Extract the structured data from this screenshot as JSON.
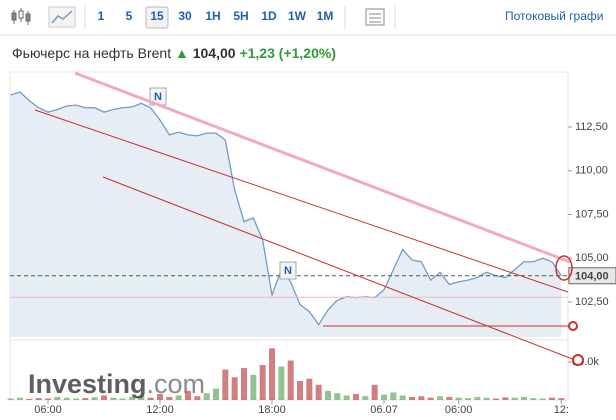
{
  "toolbar": {
    "intervals": [
      "1",
      "5",
      "15",
      "30",
      "1H",
      "5H",
      "1D",
      "1W",
      "1M"
    ],
    "selected_interval": 2,
    "streaming_link": "Потоковый графи"
  },
  "header": {
    "instrument": "Фьючерс на нефть Brent",
    "price": "104,00",
    "change": "+1,23",
    "change_pct": "(+1,20%)"
  },
  "watermark": [
    "Investing",
    ".com"
  ],
  "news_markers": [
    "N",
    "N"
  ],
  "chart_data": {
    "type": "line",
    "categories": [
      null,
      null,
      null,
      null,
      "06:00",
      null,
      null,
      null,
      null,
      null,
      null,
      null,
      null,
      null,
      null,
      null,
      "12:00",
      null,
      null,
      null,
      null,
      null,
      null,
      null,
      null,
      null,
      null,
      null,
      "18:00",
      null,
      null,
      null,
      null,
      null,
      null,
      null,
      null,
      null,
      null,
      null,
      "06.07",
      null,
      null,
      null,
      null,
      null,
      null,
      null,
      "06:00",
      null,
      null,
      null,
      null,
      null,
      null,
      null,
      null,
      null,
      null,
      "12:"
    ],
    "values": [
      114.33,
      114.5,
      114.0,
      113.6,
      113.35,
      113.5,
      113.7,
      113.75,
      113.6,
      113.6,
      113.35,
      113.5,
      113.6,
      113.65,
      113.85,
      113.6,
      112.9,
      112.05,
      112.2,
      112.05,
      112.0,
      112.15,
      112.15,
      111.75,
      108.9,
      107.1,
      107.3,
      106.05,
      102.9,
      104.35,
      103.65,
      102.35,
      101.95,
      101.2,
      102.05,
      102.6,
      102.8,
      102.75,
      102.8,
      102.75,
      103.2,
      104.35,
      105.5,
      104.9,
      104.8,
      103.75,
      104.2,
      103.5,
      103.65,
      103.75,
      103.9,
      104.2,
      104.0,
      103.9,
      104.35,
      104.8,
      104.8,
      105.0,
      104.8,
      104.0
    ],
    "color": "#6f9cc9",
    "fill": "#e6edf5",
    "ylim": [
      100.5,
      115
    ],
    "yticks": [
      {
        "value": 102.5,
        "label": "102,50"
      },
      {
        "value": 105,
        "label": "105,00"
      },
      {
        "value": 107.5,
        "label": "107,50"
      },
      {
        "value": 110,
        "label": "110,00"
      },
      {
        "value": 112.5,
        "label": "112,50"
      }
    ],
    "last_price": {
      "value": 104,
      "label": "104,00"
    },
    "previous_close": 102.77,
    "volume": {
      "values": [
        2000,
        3000,
        1500,
        2500,
        2000,
        4000,
        3000,
        2000,
        2500,
        3500,
        6000,
        3000,
        2000,
        4000,
        5000,
        3000,
        8000,
        4000,
        6000,
        12000,
        5000,
        9000,
        15000,
        40000,
        30000,
        42000,
        33000,
        46000,
        68000,
        44000,
        52000,
        25000,
        28000,
        20000,
        12000,
        9000,
        6000,
        8000,
        5000,
        20000,
        7000,
        10000,
        6000,
        4000,
        5000,
        3000,
        5000,
        4000,
        3000,
        2500,
        4000,
        3000,
        2000,
        3500,
        3000,
        4000,
        2500,
        2000,
        3000,
        2500
      ],
      "up_color": "#7fb77e",
      "down_color": "#c9676a",
      "ylim": [
        0,
        72000
      ],
      "yticks": [
        {
          "value": 50000,
          "label": "50.0k"
        }
      ]
    }
  }
}
